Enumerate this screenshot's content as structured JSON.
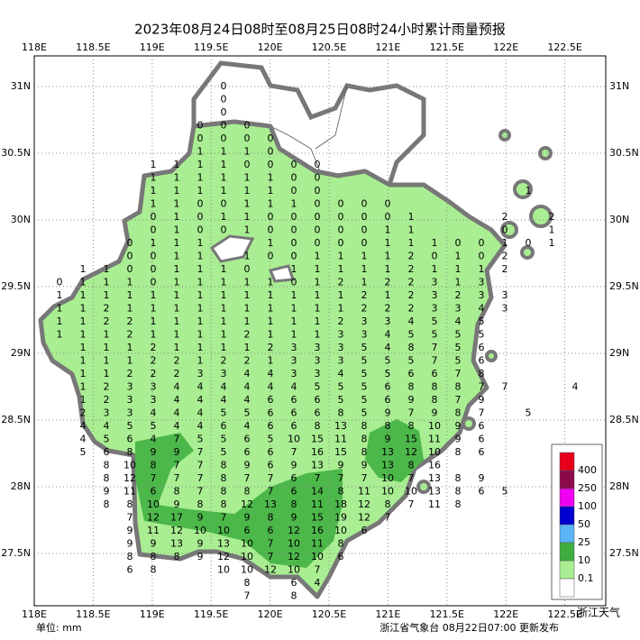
{
  "header": {
    "title": "2023年08月24日08时至08月25日08时24小时累计雨量预报"
  },
  "map": {
    "lon_ticks": [
      "118E",
      "118.5E",
      "119E",
      "119.5E",
      "120E",
      "120.5E",
      "121E",
      "121.5E",
      "122E",
      "122.5E"
    ],
    "lat_ticks": [
      "31N",
      "30.5N",
      "30N",
      "29.5N",
      "29N",
      "28.5N",
      "28N",
      "27.5N"
    ],
    "grid_values": [
      [
        null,
        null,
        null,
        null,
        null,
        null,
        null,
        0
      ],
      [
        null,
        null,
        null,
        null,
        null,
        null,
        null,
        0
      ],
      [
        null,
        null,
        null,
        null,
        null,
        null,
        null,
        0
      ],
      [
        null,
        null,
        null,
        null,
        null,
        null,
        0,
        0,
        0
      ],
      [
        null,
        null,
        null,
        null,
        null,
        null,
        0,
        0,
        0,
        0
      ],
      [
        null,
        null,
        null,
        null,
        null,
        null,
        1,
        1,
        1,
        0
      ],
      [
        null,
        null,
        null,
        null,
        1,
        1,
        1,
        1,
        0,
        0,
        0,
        0
      ],
      [
        null,
        null,
        null,
        null,
        1,
        1,
        1,
        1,
        1,
        1,
        0,
        0
      ],
      [
        null,
        null,
        null,
        null,
        1,
        1,
        1,
        1,
        1,
        1,
        0,
        0,
        null,
        null,
        null,
        null,
        null,
        null,
        null,
        null,
        1
      ],
      [
        null,
        null,
        null,
        null,
        1,
        1,
        0,
        0,
        1,
        1,
        1,
        0,
        0,
        0,
        0
      ],
      [
        null,
        null,
        null,
        null,
        0,
        1,
        0,
        1,
        1,
        0,
        0,
        0,
        0,
        0,
        0,
        1,
        null,
        null,
        null,
        2,
        null,
        2
      ],
      [
        null,
        null,
        null,
        null,
        0,
        1,
        0,
        0,
        1,
        0,
        0,
        0,
        0,
        0,
        1,
        1,
        null,
        null,
        null,
        0,
        null,
        1
      ],
      [
        null,
        null,
        null,
        0,
        1,
        1,
        1,
        null,
        null,
        1,
        0,
        0,
        0,
        0,
        1,
        1,
        1,
        0,
        0,
        1,
        0,
        1
      ],
      [
        null,
        null,
        null,
        0,
        0,
        1,
        1,
        null,
        1,
        0,
        0,
        1,
        1,
        1,
        1,
        2,
        0,
        1,
        0,
        2
      ],
      [
        null,
        1,
        1,
        0,
        0,
        1,
        1,
        1,
        0,
        null,
        1,
        1,
        1,
        1,
        1,
        2,
        1,
        1,
        1,
        2
      ],
      [
        0,
        1,
        1,
        1,
        0,
        1,
        1,
        1,
        1,
        1,
        0,
        1,
        2,
        1,
        2,
        2,
        3,
        1,
        3
      ],
      [
        1,
        1,
        1,
        1,
        1,
        1,
        1,
        1,
        1,
        1,
        1,
        1,
        1,
        2,
        1,
        2,
        3,
        2,
        3,
        3
      ],
      [
        1,
        1,
        2,
        1,
        1,
        1,
        1,
        1,
        1,
        1,
        1,
        1,
        1,
        2,
        2,
        2,
        3,
        3,
        4,
        3
      ],
      [
        1,
        1,
        2,
        2,
        1,
        1,
        1,
        1,
        1,
        1,
        1,
        1,
        2,
        3,
        3,
        4,
        5,
        4,
        5
      ],
      [
        1,
        1,
        1,
        2,
        1,
        1,
        1,
        1,
        2,
        1,
        1,
        1,
        3,
        3,
        4,
        5,
        5,
        5,
        5
      ],
      [
        null,
        1,
        1,
        1,
        2,
        1,
        1,
        1,
        1,
        2,
        3,
        3,
        3,
        5,
        4,
        8,
        7,
        5,
        6
      ],
      [
        null,
        1,
        1,
        1,
        2,
        2,
        1,
        2,
        2,
        1,
        3,
        3,
        3,
        5,
        5,
        5,
        7,
        5,
        6
      ],
      [
        null,
        1,
        1,
        2,
        2,
        2,
        3,
        3,
        4,
        4,
        3,
        3,
        4,
        5,
        5,
        6,
        6,
        7,
        8
      ],
      [
        null,
        1,
        2,
        3,
        3,
        4,
        4,
        4,
        4,
        4,
        4,
        5,
        5,
        5,
        6,
        8,
        8,
        8,
        7,
        7,
        null,
        null,
        4
      ],
      [
        null,
        1,
        2,
        3,
        3,
        4,
        4,
        4,
        4,
        6,
        6,
        6,
        5,
        5,
        6,
        9,
        8,
        7,
        9
      ],
      [
        null,
        2,
        3,
        3,
        4,
        4,
        4,
        5,
        5,
        6,
        6,
        6,
        8,
        5,
        9,
        7,
        9,
        8,
        7,
        null,
        5
      ],
      [
        null,
        4,
        4,
        5,
        5,
        4,
        4,
        6,
        4,
        6,
        6,
        8,
        13,
        8,
        8,
        8,
        10,
        9,
        6
      ],
      [
        null,
        4,
        5,
        6,
        4,
        7,
        5,
        5,
        6,
        5,
        10,
        15,
        11,
        8,
        9,
        15,
        11,
        9,
        6
      ],
      [
        null,
        5,
        6,
        8,
        9,
        9,
        7,
        5,
        6,
        6,
        7,
        16,
        15,
        8,
        13,
        12,
        10,
        8,
        6
      ],
      [
        null,
        null,
        8,
        10,
        8,
        7,
        7,
        8,
        9,
        6,
        9,
        13,
        9,
        9,
        13,
        8,
        16
      ],
      [
        null,
        null,
        8,
        12,
        7,
        7,
        7,
        8,
        7,
        7,
        6,
        7,
        7,
        7,
        10,
        7,
        13,
        8,
        9
      ],
      [
        null,
        null,
        9,
        11,
        6,
        8,
        7,
        8,
        8,
        7,
        6,
        14,
        8,
        11,
        10,
        10,
        13,
        8,
        6,
        5
      ],
      [
        null,
        null,
        8,
        8,
        10,
        9,
        8,
        8,
        12,
        13,
        8,
        11,
        18,
        12,
        8,
        7,
        11,
        8
      ],
      [
        null,
        null,
        null,
        7,
        12,
        17,
        9,
        7,
        9,
        8,
        9,
        15,
        19,
        12,
        7
      ],
      [
        null,
        null,
        null,
        9,
        11,
        12,
        10,
        10,
        6,
        6,
        12,
        16,
        10,
        6
      ],
      [
        null,
        null,
        null,
        9,
        9,
        13,
        9,
        13,
        10,
        7,
        10,
        11,
        8
      ],
      [
        null,
        null,
        null,
        8,
        8,
        8,
        9,
        12,
        10,
        7,
        12,
        10,
        6
      ],
      [
        null,
        null,
        null,
        6,
        8,
        null,
        null,
        10,
        10,
        12,
        10,
        7
      ],
      [
        null,
        null,
        null,
        null,
        null,
        null,
        null,
        null,
        8,
        null,
        6,
        4
      ],
      [
        null,
        null,
        null,
        null,
        null,
        null,
        null,
        null,
        7,
        null,
        8
      ]
    ]
  },
  "legend": {
    "labels": [
      "400",
      "250",
      "100",
      "50",
      "25",
      "10",
      "0.1"
    ]
  },
  "footer": {
    "unit": "单位: mm",
    "source": "浙江省气象台 08月22日07:00 更新发布",
    "watermark": "浙江天气"
  }
}
